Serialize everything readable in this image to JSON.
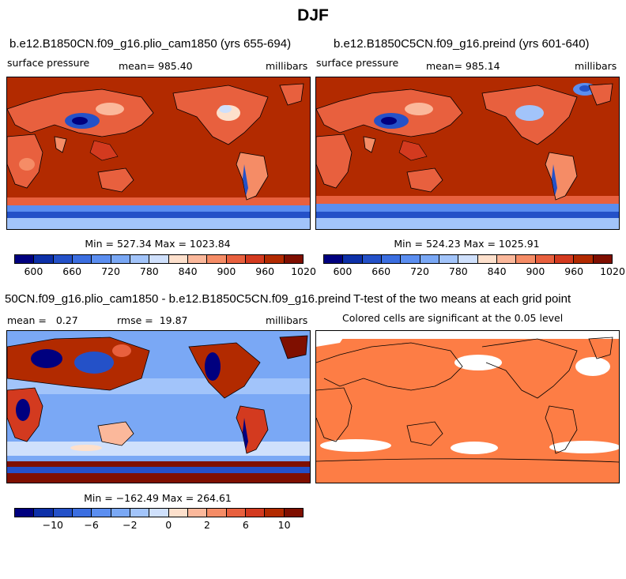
{
  "title": "DJF",
  "panels": [
    {
      "id": "case",
      "title": "b.e12.B1850CN.f09_g16.plio_cam1850 (yrs 655-694)",
      "variable": "surface pressure",
      "stat": "mean= 985.40",
      "units": "millibars",
      "minmax": "Min = 527.34 Max = 1023.84",
      "colorbar": {
        "labels": [
          "600",
          "660",
          "720",
          "780",
          "840",
          "900",
          "960",
          "1020"
        ]
      }
    },
    {
      "id": "control",
      "title": "b.e12.B1850C5CN.f09_g16.preind (yrs 601-640)",
      "variable": "surface pressure",
      "stat": "mean= 985.14",
      "units": "millibars",
      "minmax": "Min = 524.23 Max = 1025.91",
      "colorbar": {
        "labels": [
          "600",
          "660",
          "720",
          "780",
          "840",
          "900",
          "960",
          "1020"
        ]
      }
    },
    {
      "id": "difference",
      "title": "50CN.f09_g16.plio_cam1850 - b.e12.B1850C5CN.f09_g16.preind",
      "stat": "mean =   0.27",
      "rmse": "rmse =  19.87",
      "units": "millibars",
      "minmax": "Min = −162.49 Max = 264.61",
      "colorbar": {
        "labels": [
          "−10",
          "−6",
          "−2",
          "0",
          "2",
          "6",
          "10"
        ]
      }
    },
    {
      "id": "ttest",
      "title": "T-test of the two means at each grid point",
      "subtitle": "Colored cells are significant at the 0.05 level"
    }
  ],
  "colors": {
    "abs_scale": [
      "#00007f",
      "#0d30a8",
      "#2451c8",
      "#3b6ee0",
      "#5b8ef0",
      "#7aa8f5",
      "#a2c4fa",
      "#cfe0fc",
      "#fde0cc",
      "#fbb89b",
      "#f58c66",
      "#e8603e",
      "#d33a1f",
      "#b22a00",
      "#7f0f00"
    ],
    "diff_scale": [
      "#00007f",
      "#0d30a8",
      "#2451c8",
      "#3b6ee0",
      "#5b8ef0",
      "#7aa8f5",
      "#a2c4fa",
      "#cfe0fc",
      "#fde0cc",
      "#fbb89b",
      "#f58c66",
      "#e8603e",
      "#d33a1f",
      "#b22a00",
      "#7f0f00"
    ],
    "ttest_fill": "#fd7d45",
    "ocean_high": "#b22a00",
    "diff_ocean": "#7aa8f5"
  }
}
